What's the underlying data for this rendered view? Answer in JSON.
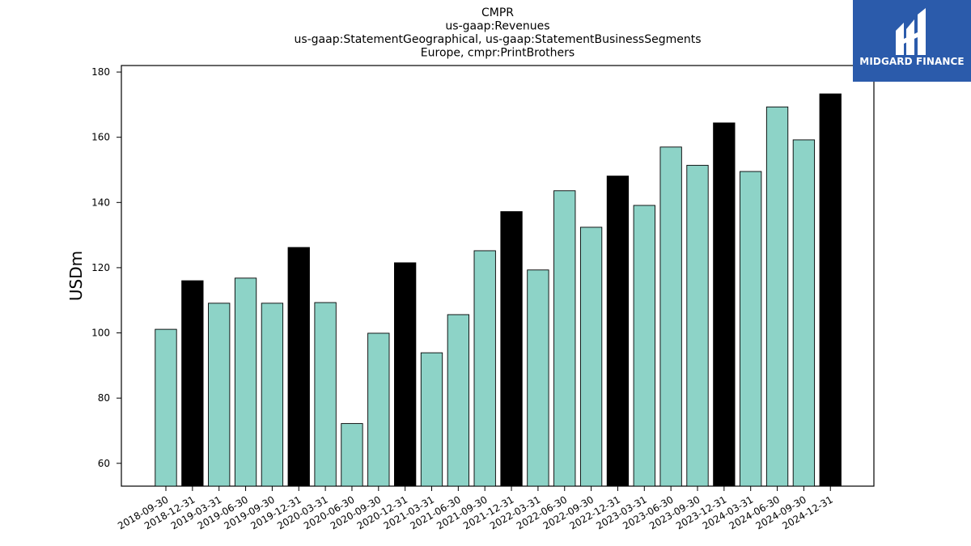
{
  "brand": {
    "name": "MIDGARD FINANCE",
    "background_color": "#2b5bab",
    "logo_icon": "midgard-finance-logo-icon"
  },
  "chart_data": {
    "type": "bar",
    "title_lines": [
      "CMPR",
      "us-gaap:Revenues",
      "us-gaap:StatementGeographical, us-gaap:StatementBusinessSegments",
      "Europe, cmpr:PrintBrothers"
    ],
    "xlabel": "",
    "ylabel": "USDm",
    "ylim": [
      53,
      182
    ],
    "yticks": [
      60,
      80,
      100,
      120,
      140,
      160,
      180
    ],
    "grid": false,
    "legend": "none",
    "colors": {
      "quarter": "#8dd3c7",
      "year_end": "#000000",
      "edge": "#000000"
    },
    "categories": [
      "2018-09-30",
      "2018-12-31",
      "2019-03-31",
      "2019-06-30",
      "2019-09-30",
      "2019-12-31",
      "2020-03-31",
      "2020-06-30",
      "2020-09-30",
      "2020-12-31",
      "2021-03-31",
      "2021-06-30",
      "2021-09-30",
      "2021-12-31",
      "2022-03-31",
      "2022-06-30",
      "2022-09-30",
      "2022-12-31",
      "2023-03-31",
      "2023-06-30",
      "2023-09-30",
      "2023-12-31",
      "2024-03-31",
      "2024-06-30",
      "2024-09-30",
      "2024-12-31"
    ],
    "values": [
      101.1,
      116.0,
      109.1,
      116.8,
      109.1,
      126.2,
      109.3,
      72.2,
      99.9,
      121.5,
      93.9,
      105.6,
      125.2,
      137.2,
      119.3,
      143.6,
      132.4,
      148.1,
      139.1,
      157.0,
      151.4,
      164.4,
      149.5,
      169.3,
      159.2,
      173.3
    ]
  }
}
